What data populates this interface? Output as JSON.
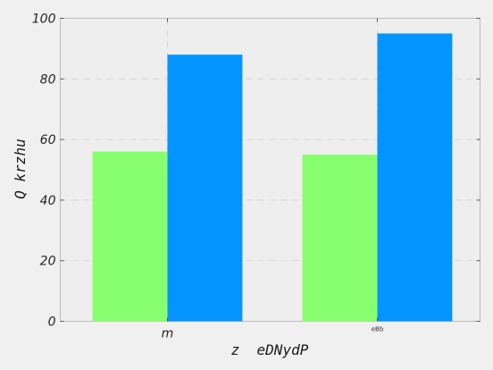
{
  "chart_data": {
    "type": "bar",
    "categories": [
      "m",
      "eBb"
    ],
    "series": [
      {
        "values": [
          56,
          55
        ],
        "color": "#88ff6e"
      },
      {
        "values": [
          88,
          95
        ],
        "color": "#0394ff"
      }
    ],
    "xlabel": "z  eDNydP",
    "ylabel": "Q krzhu",
    "ylim": [
      0,
      100
    ],
    "yticks": [
      0,
      20,
      40,
      60,
      80,
      100
    ],
    "grid": true,
    "background": "#eeeeee"
  }
}
